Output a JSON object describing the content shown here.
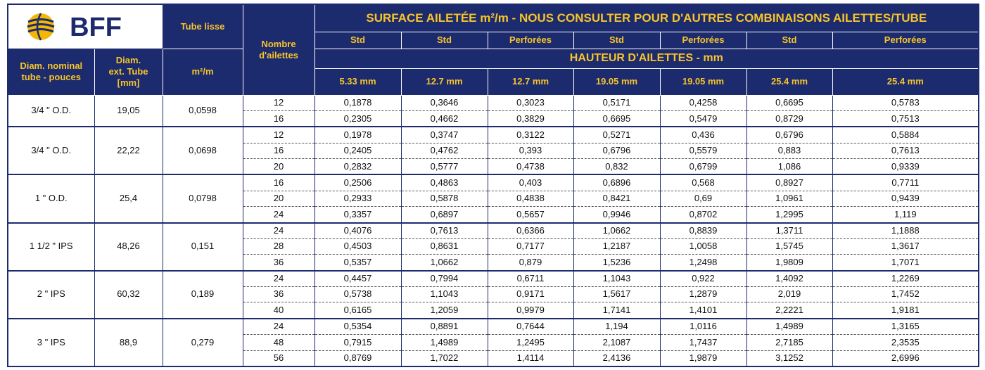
{
  "logo": "BFF",
  "header": {
    "tube_lisse": "Tube lisse",
    "nombre": "Nombre d'ailettes",
    "title": "SURFACE AILETÉE m²/m - NOUS CONSULTER POUR D'AUTRES COMBINAISONS AILETTES/TUBE",
    "types": [
      "Std",
      "Std",
      "Perforées",
      "Std",
      "Perforées",
      "Std",
      "Perforées"
    ],
    "diam_nominal": "Diam. nominal tube - pouces",
    "diam_ext": "Diam. ext. Tube [mm]",
    "unit": "m²/m",
    "hauteur": "HAUTEUR D'AILETTES - mm",
    "heights": [
      "5.33 mm",
      "12.7 mm",
      "12.7 mm",
      "19.05 mm",
      "19.05 mm",
      "25.4 mm",
      "25.4 mm"
    ]
  },
  "groups": [
    {
      "diam": "3/4 \" O.D.",
      "ext": "19,05",
      "lisse": "0,0598",
      "rows": [
        [
          "12",
          "0,1878",
          "0,3646",
          "0,3023",
          "0,5171",
          "0,4258",
          "0,6695",
          "0,5783"
        ],
        [
          "16",
          "0,2305",
          "0,4662",
          "0,3829",
          "0,6695",
          "0,5479",
          "0,8729",
          "0,7513"
        ]
      ]
    },
    {
      "diam": "3/4 \" O.D.",
      "ext": "22,22",
      "lisse": "0,0698",
      "rows": [
        [
          "12",
          "0,1978",
          "0,3747",
          "0,3122",
          "0,5271",
          "0,436",
          "0,6796",
          "0,5884"
        ],
        [
          "16",
          "0,2405",
          "0,4762",
          "0,393",
          "0,6796",
          "0,5579",
          "0,883",
          "0,7613"
        ],
        [
          "20",
          "0,2832",
          "0,5777",
          "0,4738",
          "0,832",
          "0,6799",
          "1,086",
          "0,9339"
        ]
      ]
    },
    {
      "diam": "1 \" O.D.",
      "ext": "25,4",
      "lisse": "0,0798",
      "rows": [
        [
          "16",
          "0,2506",
          "0,4863",
          "0,403",
          "0,6896",
          "0,568",
          "0,8927",
          "0,7711"
        ],
        [
          "20",
          "0,2933",
          "0,5878",
          "0,4838",
          "0,8421",
          "0,69",
          "1,0961",
          "0,9439"
        ],
        [
          "24",
          "0,3357",
          "0,6897",
          "0,5657",
          "0,9946",
          "0,8702",
          "1,2995",
          "1,119"
        ]
      ]
    },
    {
      "diam": "1 1/2 \" IPS",
      "ext": "48,26",
      "lisse": "0,151",
      "rows": [
        [
          "24",
          "0,4076",
          "0,7613",
          "0,6366",
          "1,0662",
          "0,8839",
          "1,3711",
          "1,1888"
        ],
        [
          "28",
          "0,4503",
          "0,8631",
          "0,7177",
          "1,2187",
          "1,0058",
          "1,5745",
          "1,3617"
        ],
        [
          "36",
          "0,5357",
          "1,0662",
          "0,879",
          "1,5236",
          "1,2498",
          "1,9809",
          "1,7071"
        ]
      ]
    },
    {
      "diam": "2 \" IPS",
      "ext": "60,32",
      "lisse": "0,189",
      "rows": [
        [
          "24",
          "0,4457",
          "0,7994",
          "0,6711",
          "1,1043",
          "0,922",
          "1,4092",
          "1,2269"
        ],
        [
          "36",
          "0,5738",
          "1,1043",
          "0,9171",
          "1,5617",
          "1,2879",
          "2,019",
          "1,7452"
        ],
        [
          "40",
          "0,6165",
          "1,2059",
          "0,9979",
          "1,7141",
          "1,4101",
          "2,2221",
          "1,9181"
        ]
      ]
    },
    {
      "diam": "3 \" IPS",
      "ext": "88,9",
      "lisse": "0,279",
      "rows": [
        [
          "24",
          "0,5354",
          "0,8891",
          "0,7644",
          "1,194",
          "1,0116",
          "1,4989",
          "1,3165"
        ],
        [
          "48",
          "0,7915",
          "1,4989",
          "1,2495",
          "2,1087",
          "1,7437",
          "2,7185",
          "2,3535"
        ],
        [
          "56",
          "0,8769",
          "1,7022",
          "1,4114",
          "2,4136",
          "1,9879",
          "3,1252",
          "2,6996"
        ]
      ]
    }
  ]
}
